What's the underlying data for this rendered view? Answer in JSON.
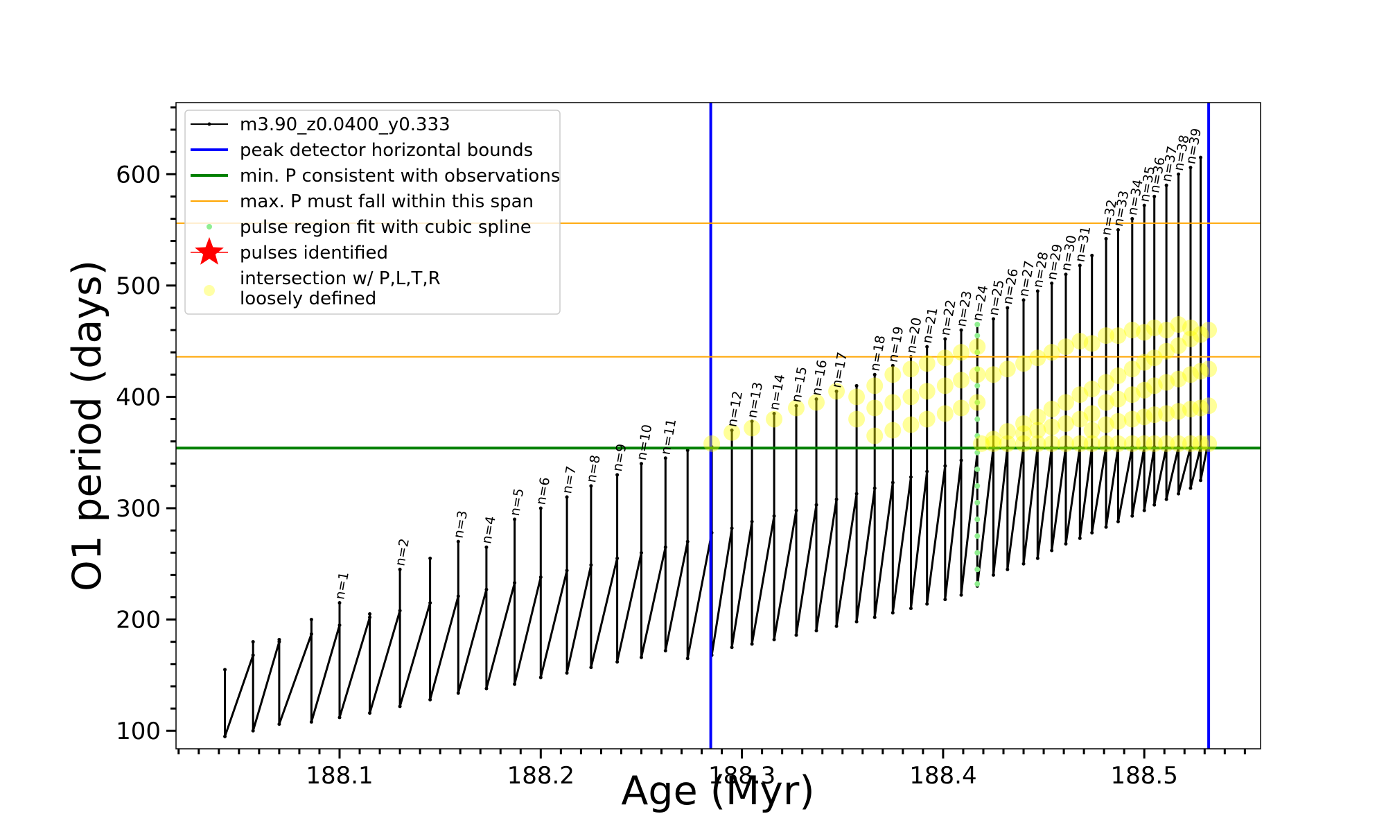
{
  "chart_data": {
    "type": "line",
    "xlabel": "Age (Myr)",
    "ylabel": "O1 period (days)",
    "xlim": [
      188.0187,
      188.5578
    ],
    "ylim": [
      83.9,
      664.3
    ],
    "xticks": [
      188.1,
      188.2,
      188.3,
      188.4,
      188.5
    ],
    "yticks": [
      100,
      200,
      300,
      400,
      500,
      600
    ],
    "xminorticks": [
      188.02,
      188.03,
      188.04,
      188.05,
      188.06,
      188.07,
      188.08,
      188.09,
      188.11,
      188.12,
      188.13,
      188.14,
      188.15,
      188.16,
      188.17,
      188.18,
      188.19,
      188.21,
      188.22,
      188.23,
      188.24,
      188.25,
      188.26,
      188.27,
      188.28,
      188.29,
      188.31,
      188.32,
      188.33,
      188.34,
      188.35,
      188.36,
      188.37,
      188.38,
      188.39,
      188.41,
      188.42,
      188.43,
      188.44,
      188.45,
      188.46,
      188.47,
      188.48,
      188.49,
      188.51,
      188.52,
      188.53,
      188.54,
      188.55
    ],
    "yminorticks": [
      120,
      140,
      160,
      180,
      220,
      240,
      260,
      280,
      320,
      340,
      360,
      380,
      420,
      440,
      460,
      480,
      520,
      540,
      560,
      580,
      620,
      640,
      660
    ],
    "grid": false,
    "legend": "upper left",
    "series": [
      {
        "name": "m3.90_z0.0400_y0.333",
        "kind": "line",
        "marker": "dot",
        "color": "#000000",
        "x": [
          188.043,
          188.043,
          188.057,
          188.057,
          188.057,
          188.07,
          188.07,
          188.07,
          188.086,
          188.086,
          188.086,
          188.1,
          188.1,
          188.1,
          188.115,
          188.115,
          188.115,
          188.13,
          188.13,
          188.13,
          188.145,
          188.145,
          188.145,
          188.159,
          188.159,
          188.159,
          188.173,
          188.173,
          188.173,
          188.187,
          188.187,
          188.187,
          188.2,
          188.2,
          188.2,
          188.213,
          188.213,
          188.213,
          188.225,
          188.225,
          188.225,
          188.238,
          188.238,
          188.238,
          188.25,
          188.25,
          188.25,
          188.262,
          188.262,
          188.262,
          188.273,
          188.273,
          188.273,
          188.285,
          188.285,
          188.285,
          188.295,
          188.295,
          188.295,
          188.305,
          188.305,
          188.305,
          188.316,
          188.316,
          188.316,
          188.327,
          188.327,
          188.327,
          188.337,
          188.337,
          188.337,
          188.347,
          188.347,
          188.347,
          188.357,
          188.357,
          188.357,
          188.366,
          188.366,
          188.366,
          188.375,
          188.375,
          188.375,
          188.384,
          188.384,
          188.384,
          188.392,
          188.392,
          188.392,
          188.401,
          188.401,
          188.401,
          188.409,
          188.409,
          188.409,
          188.417,
          188.417,
          188.417,
          188.425,
          188.425,
          188.425,
          188.432,
          188.432,
          188.432,
          188.44,
          188.44,
          188.44,
          188.447,
          188.447,
          188.447,
          188.454,
          188.454,
          188.454,
          188.461,
          188.461,
          188.461,
          188.468,
          188.468,
          188.468,
          188.474,
          188.474,
          188.474,
          188.481,
          188.481,
          188.481,
          188.487,
          188.487,
          188.487,
          188.494,
          188.494,
          188.494,
          188.5,
          188.5,
          188.5,
          188.505,
          188.505,
          188.505,
          188.511,
          188.511,
          188.511,
          188.517,
          188.517,
          188.517,
          188.523,
          188.523,
          188.523,
          188.528,
          188.528,
          188.528,
          188.531
        ],
        "y": [
          155,
          95,
          168,
          180,
          100,
          180,
          182,
          106,
          187,
          200,
          108,
          195,
          215,
          112,
          202,
          205,
          116,
          208,
          245,
          122,
          215,
          255,
          128,
          221,
          270,
          134,
          227,
          265,
          138,
          233,
          290,
          142,
          238,
          300,
          148,
          244,
          310,
          152,
          249,
          320,
          157,
          255,
          330,
          162,
          260,
          340,
          166,
          265,
          345,
          172,
          270,
          352,
          165,
          278,
          355,
          168,
          282,
          370,
          175,
          288,
          378,
          178,
          293,
          385,
          182,
          298,
          392,
          186,
          303,
          398,
          190,
          308,
          405,
          194,
          313,
          410,
          198,
          318,
          420,
          202,
          323,
          428,
          206,
          328,
          436,
          210,
          333,
          445,
          214,
          338,
          452,
          218,
          343,
          460,
          222,
          350,
          465,
          230,
          355,
          470,
          240,
          355,
          480,
          245,
          355,
          487,
          250,
          355,
          495,
          255,
          355,
          502,
          262,
          355,
          510,
          268,
          355,
          518,
          273,
          355,
          527,
          278,
          355,
          542,
          283,
          355,
          550,
          288,
          355,
          560,
          293,
          355,
          572,
          298,
          355,
          580,
          303,
          355,
          590,
          308,
          355,
          600,
          313,
          355,
          606,
          318,
          355,
          615,
          325,
          352
        ]
      },
      {
        "name": "peak detector horizontal bounds",
        "kind": "vline",
        "marker": "none",
        "color": "#0000ff",
        "x": [
          188.2845,
          188.532
        ]
      },
      {
        "name": "min. P consistent with observations",
        "kind": "hline",
        "marker": "none",
        "color": "#008000",
        "y": [
          354
        ]
      },
      {
        "name": "max. P must fall within this span",
        "kind": "hline",
        "marker": "none",
        "color": "#ffa500",
        "y": [
          436,
          556
        ]
      },
      {
        "name": "pulse region fit with cubic spline",
        "kind": "scatter",
        "marker": "dot",
        "color": "#90ee90",
        "x": [
          188.417,
          188.417,
          188.417,
          188.417,
          188.417,
          188.417,
          188.417,
          188.417,
          188.417,
          188.417,
          188.417,
          188.417,
          188.417,
          188.417,
          188.417,
          188.417,
          188.417
        ],
        "y": [
          232,
          245,
          260,
          275,
          290,
          305,
          320,
          335,
          350,
          365,
          380,
          395,
          410,
          425,
          440,
          455,
          465
        ]
      },
      {
        "name": "pulses identified",
        "kind": "scatter",
        "marker": "star",
        "color": "#ff0000",
        "x": [],
        "y": []
      },
      {
        "name": "intersection w/ P,L,T,R\nloosely defined",
        "kind": "scatter",
        "marker": "circle",
        "color": "#ffff00",
        "x": [
          188.419,
          188.425,
          188.425,
          188.432,
          188.432,
          188.44,
          188.44,
          188.44,
          188.447,
          188.447,
          188.447,
          188.454,
          188.454,
          188.454,
          188.461,
          188.461,
          188.461,
          188.468,
          188.468,
          188.468,
          188.474,
          188.474,
          188.474,
          188.474,
          188.481,
          188.481,
          188.481,
          188.481,
          188.487,
          188.487,
          188.487,
          188.487,
          188.494,
          188.494,
          188.494,
          188.494,
          188.5,
          188.5,
          188.5,
          188.5,
          188.505,
          188.505,
          188.505,
          188.505,
          188.511,
          188.511,
          188.511,
          188.511,
          188.517,
          188.517,
          188.517,
          188.517,
          188.523,
          188.523,
          188.523,
          188.523,
          188.528,
          188.528,
          188.528,
          188.528,
          188.532,
          188.532,
          188.532,
          188.532,
          188.285,
          188.295,
          188.305,
          188.316,
          188.327,
          188.337,
          188.347,
          188.357,
          188.357,
          188.366,
          188.366,
          188.366,
          188.375,
          188.375,
          188.375,
          188.384,
          188.384,
          188.384,
          188.392,
          188.392,
          188.392,
          188.401,
          188.401,
          188.401,
          188.409,
          188.409,
          188.409,
          188.417,
          188.417,
          188.417,
          188.425,
          188.432,
          188.44,
          188.447,
          188.454,
          188.461,
          188.468,
          188.474,
          188.481,
          188.487,
          188.494,
          188.5,
          188.505,
          188.511,
          188.517,
          188.523
        ],
        "y": [
          358,
          358,
          362,
          358,
          369,
          358,
          367,
          376,
          358,
          370,
          382,
          358,
          373,
          389,
          358,
          376,
          395,
          358,
          380,
          402,
          358,
          370,
          385,
          407,
          358,
          375,
          395,
          413,
          358,
          378,
          398,
          419,
          358,
          380,
          402,
          425,
          358,
          382,
          406,
          431,
          358,
          384,
          410,
          435,
          358,
          385,
          413,
          441,
          358,
          387,
          416,
          446,
          358,
          389,
          420,
          452,
          358,
          390,
          423,
          456,
          358,
          392,
          425,
          460,
          358,
          368,
          372,
          380,
          390,
          395,
          405,
          400,
          380,
          410,
          390,
          365,
          420,
          395,
          370,
          425,
          400,
          375,
          430,
          405,
          380,
          435,
          410,
          385,
          440,
          415,
          390,
          445,
          420,
          395,
          420,
          425,
          430,
          435,
          440,
          445,
          450,
          448,
          455,
          455,
          460,
          458,
          462,
          460,
          465,
          462
        ]
      }
    ],
    "annotations": [
      {
        "text": "n=1",
        "x": 188.1,
        "y": 215
      },
      {
        "text": "n=2",
        "x": 188.13,
        "y": 245
      },
      {
        "text": "n=3",
        "x": 188.159,
        "y": 270
      },
      {
        "text": "n=4",
        "x": 188.173,
        "y": 265
      },
      {
        "text": "n=5",
        "x": 188.187,
        "y": 290
      },
      {
        "text": "n=6",
        "x": 188.2,
        "y": 300
      },
      {
        "text": "n=7",
        "x": 188.213,
        "y": 310
      },
      {
        "text": "n=8",
        "x": 188.225,
        "y": 320
      },
      {
        "text": "n=9",
        "x": 188.238,
        "y": 330
      },
      {
        "text": "n=10",
        "x": 188.25,
        "y": 340
      },
      {
        "text": "n=11",
        "x": 188.262,
        "y": 345
      },
      {
        "text": "n=12",
        "x": 188.295,
        "y": 370
      },
      {
        "text": "n=13",
        "x": 188.305,
        "y": 378
      },
      {
        "text": "n=14",
        "x": 188.316,
        "y": 385
      },
      {
        "text": "n=15",
        "x": 188.327,
        "y": 392
      },
      {
        "text": "n=16",
        "x": 188.337,
        "y": 398
      },
      {
        "text": "n=17",
        "x": 188.347,
        "y": 405
      },
      {
        "text": "n=18",
        "x": 188.366,
        "y": 420
      },
      {
        "text": "n=19",
        "x": 188.375,
        "y": 428
      },
      {
        "text": "n=20",
        "x": 188.384,
        "y": 436
      },
      {
        "text": "n=21",
        "x": 188.392,
        "y": 445
      },
      {
        "text": "n=22",
        "x": 188.401,
        "y": 452
      },
      {
        "text": "n=23",
        "x": 188.409,
        "y": 460
      },
      {
        "text": "n=24",
        "x": 188.417,
        "y": 465
      },
      {
        "text": "n=25",
        "x": 188.425,
        "y": 470
      },
      {
        "text": "n=26",
        "x": 188.432,
        "y": 480
      },
      {
        "text": "n=27",
        "x": 188.44,
        "y": 487
      },
      {
        "text": "n=28",
        "x": 188.447,
        "y": 495
      },
      {
        "text": "n=29",
        "x": 188.454,
        "y": 502
      },
      {
        "text": "n=30",
        "x": 188.461,
        "y": 510
      },
      {
        "text": "n=31",
        "x": 188.468,
        "y": 518
      },
      {
        "text": "n=32",
        "x": 188.481,
        "y": 542
      },
      {
        "text": "n=33",
        "x": 188.487,
        "y": 550
      },
      {
        "text": "n=34",
        "x": 188.494,
        "y": 560
      },
      {
        "text": "n=35",
        "x": 188.5,
        "y": 572
      },
      {
        "text": "n=36",
        "x": 188.505,
        "y": 580
      },
      {
        "text": "n=37",
        "x": 188.511,
        "y": 590
      },
      {
        "text": "n=38",
        "x": 188.517,
        "y": 600
      },
      {
        "text": "n=39",
        "x": 188.523,
        "y": 606
      }
    ]
  }
}
